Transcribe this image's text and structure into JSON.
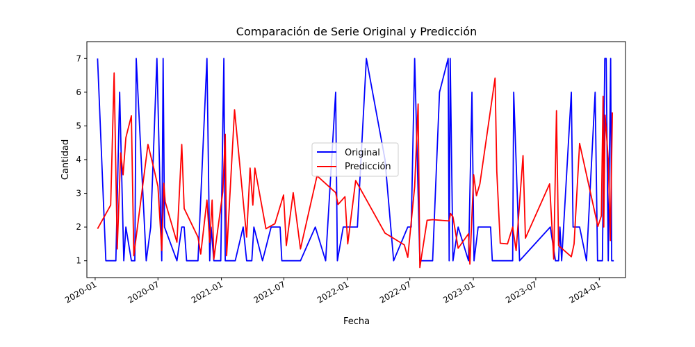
{
  "chart_data": {
    "type": "line",
    "title": "Comparación de Serie Original y Predicción",
    "xlabel": "Fecha",
    "ylabel": "Cantidad",
    "x_axis": "date",
    "xlim": [
      "2019-12-08",
      "2024-03-17"
    ],
    "ylim": [
      0.5,
      7.5
    ],
    "x_ticks": [
      {
        "date": "2020-01-01",
        "label": "2020-01"
      },
      {
        "date": "2020-07-01",
        "label": "2020-07"
      },
      {
        "date": "2021-01-01",
        "label": "2021-01"
      },
      {
        "date": "2021-07-01",
        "label": "2021-07"
      },
      {
        "date": "2022-01-01",
        "label": "2022-01"
      },
      {
        "date": "2022-07-01",
        "label": "2022-07"
      },
      {
        "date": "2023-01-01",
        "label": "2023-01"
      },
      {
        "date": "2023-07-01",
        "label": "2023-07"
      },
      {
        "date": "2024-01-01",
        "label": "2024-01"
      }
    ],
    "y_ticks": [
      1,
      2,
      3,
      4,
      5,
      6,
      7
    ],
    "grid": false,
    "legend": {
      "placement": "center",
      "entries": [
        "Original",
        "Predicción"
      ]
    },
    "series": [
      {
        "name": "Original",
        "color": "#0000ff",
        "points": [
          [
            "2020-01-08",
            7
          ],
          [
            "2020-02-01",
            1
          ],
          [
            "2020-03-01",
            1
          ],
          [
            "2020-03-12",
            6
          ],
          [
            "2020-03-24",
            1
          ],
          [
            "2020-03-30",
            2
          ],
          [
            "2020-04-15",
            1
          ],
          [
            "2020-04-25",
            1
          ],
          [
            "2020-04-29",
            7
          ],
          [
            "2020-05-28",
            1
          ],
          [
            "2020-06-10",
            2
          ],
          [
            "2020-06-28",
            7
          ],
          [
            "2020-07-12",
            1
          ],
          [
            "2020-07-16",
            7
          ],
          [
            "2020-07-20",
            2
          ],
          [
            "2020-08-25",
            1
          ],
          [
            "2020-09-08",
            2
          ],
          [
            "2020-09-15",
            2
          ],
          [
            "2020-09-22",
            1
          ],
          [
            "2020-10-25",
            1
          ],
          [
            "2020-11-20",
            7
          ],
          [
            "2020-11-28",
            1
          ],
          [
            "2020-12-02",
            2
          ],
          [
            "2020-12-10",
            1
          ],
          [
            "2020-12-30",
            1
          ],
          [
            "2021-01-08",
            7
          ],
          [
            "2021-01-12",
            1
          ],
          [
            "2021-02-10",
            1
          ],
          [
            "2021-03-05",
            2
          ],
          [
            "2021-03-15",
            1
          ],
          [
            "2021-03-30",
            1
          ],
          [
            "2021-04-05",
            2
          ],
          [
            "2021-04-30",
            1
          ],
          [
            "2021-05-25",
            2
          ],
          [
            "2021-06-20",
            2
          ],
          [
            "2021-06-25",
            1
          ],
          [
            "2021-07-18",
            1
          ],
          [
            "2021-08-18",
            1
          ],
          [
            "2021-09-30",
            2
          ],
          [
            "2021-10-30",
            1
          ],
          [
            "2021-11-28",
            6
          ],
          [
            "2021-12-03",
            1
          ],
          [
            "2021-12-20",
            2
          ],
          [
            "2022-01-30",
            2
          ],
          [
            "2022-02-25",
            7
          ],
          [
            "2022-04-20",
            4
          ],
          [
            "2022-05-15",
            1
          ],
          [
            "2022-06-25",
            2
          ],
          [
            "2022-07-05",
            2
          ],
          [
            "2022-07-15",
            7
          ],
          [
            "2022-07-30",
            1
          ],
          [
            "2022-08-20",
            1
          ],
          [
            "2022-09-05",
            1
          ],
          [
            "2022-09-25",
            6
          ],
          [
            "2022-10-20",
            7
          ],
          [
            "2022-10-23",
            1
          ],
          [
            "2022-10-26",
            7
          ],
          [
            "2022-11-03",
            1
          ],
          [
            "2022-11-18",
            2
          ],
          [
            "2022-12-18",
            1
          ],
          [
            "2022-12-28",
            6
          ],
          [
            "2023-01-03",
            1
          ],
          [
            "2023-01-15",
            2
          ],
          [
            "2023-02-20",
            2
          ],
          [
            "2023-02-25",
            1
          ],
          [
            "2023-04-25",
            1
          ],
          [
            "2023-04-28",
            6
          ],
          [
            "2023-05-15",
            1
          ],
          [
            "2023-08-12",
            2
          ],
          [
            "2023-08-27",
            1
          ],
          [
            "2023-09-05",
            1
          ],
          [
            "2023-09-09",
            2
          ],
          [
            "2023-09-14",
            1
          ],
          [
            "2023-10-12",
            6
          ],
          [
            "2023-10-17",
            2
          ],
          [
            "2023-11-05",
            2
          ],
          [
            "2023-11-25",
            1
          ],
          [
            "2023-12-20",
            6
          ],
          [
            "2023-12-27",
            1
          ],
          [
            "2024-01-10",
            1
          ],
          [
            "2024-01-17",
            7
          ],
          [
            "2024-01-21",
            7
          ],
          [
            "2024-01-27",
            1
          ],
          [
            "2024-02-03",
            7
          ],
          [
            "2024-02-06",
            1
          ],
          [
            "2024-02-12",
            1
          ]
        ]
      },
      {
        "name": "Predicción",
        "color": "#ff0000",
        "points": [
          [
            "2020-01-08",
            1.95
          ],
          [
            "2020-02-15",
            2.65
          ],
          [
            "2020-02-25",
            6.57
          ],
          [
            "2020-03-05",
            1.35
          ],
          [
            "2020-03-15",
            4.2
          ],
          [
            "2020-03-22",
            3.55
          ],
          [
            "2020-03-30",
            4.65
          ],
          [
            "2020-04-15",
            5.3
          ],
          [
            "2020-04-22",
            1.15
          ],
          [
            "2020-06-02",
            4.45
          ],
          [
            "2020-06-20",
            3.7
          ],
          [
            "2020-07-01",
            3.2
          ],
          [
            "2020-07-12",
            1.3
          ],
          [
            "2020-07-18",
            3.3
          ],
          [
            "2020-07-22",
            2.75
          ],
          [
            "2020-08-25",
            1.55
          ],
          [
            "2020-09-08",
            4.45
          ],
          [
            "2020-09-15",
            2.55
          ],
          [
            "2020-10-25",
            1.7
          ],
          [
            "2020-11-02",
            1.2
          ],
          [
            "2020-11-20",
            2.8
          ],
          [
            "2020-11-28",
            1.55
          ],
          [
            "2020-12-05",
            2.8
          ],
          [
            "2020-12-10",
            1.05
          ],
          [
            "2021-01-05",
            3.05
          ],
          [
            "2021-01-12",
            4.75
          ],
          [
            "2021-01-16",
            1.15
          ],
          [
            "2021-02-08",
            5.48
          ],
          [
            "2021-03-15",
            1.7
          ],
          [
            "2021-03-25",
            3.75
          ],
          [
            "2021-04-02",
            2.65
          ],
          [
            "2021-04-08",
            3.75
          ],
          [
            "2021-05-10",
            1.95
          ],
          [
            "2021-06-05",
            2.1
          ],
          [
            "2021-06-30",
            2.95
          ],
          [
            "2021-07-08",
            1.45
          ],
          [
            "2021-07-28",
            3.02
          ],
          [
            "2021-08-18",
            1.35
          ],
          [
            "2021-10-05",
            3.52
          ],
          [
            "2021-11-28",
            3.02
          ],
          [
            "2021-12-05",
            2.67
          ],
          [
            "2021-12-25",
            2.9
          ],
          [
            "2022-01-02",
            1.5
          ],
          [
            "2022-01-25",
            3.38
          ],
          [
            "2022-04-20",
            1.82
          ],
          [
            "2022-06-15",
            1.47
          ],
          [
            "2022-06-25",
            1.1
          ],
          [
            "2022-07-15",
            3.2
          ],
          [
            "2022-07-25",
            5.65
          ],
          [
            "2022-07-30",
            0.8
          ],
          [
            "2022-08-20",
            2.2
          ],
          [
            "2022-09-05",
            2.22
          ],
          [
            "2022-10-23",
            2.18
          ],
          [
            "2022-10-27",
            2.4
          ],
          [
            "2022-11-03",
            2.3
          ],
          [
            "2022-11-18",
            1.37
          ],
          [
            "2022-12-18",
            1.8
          ],
          [
            "2022-12-22",
            0.9
          ],
          [
            "2023-01-02",
            3.55
          ],
          [
            "2023-01-10",
            2.93
          ],
          [
            "2023-01-20",
            3.28
          ],
          [
            "2023-03-05",
            6.42
          ],
          [
            "2023-03-10",
            3.65
          ],
          [
            "2023-03-20",
            1.52
          ],
          [
            "2023-04-10",
            1.5
          ],
          [
            "2023-04-25",
            2.0
          ],
          [
            "2023-05-05",
            1.3
          ],
          [
            "2023-05-25",
            4.12
          ],
          [
            "2023-06-01",
            1.67
          ],
          [
            "2023-08-10",
            3.28
          ],
          [
            "2023-08-22",
            1.05
          ],
          [
            "2023-08-30",
            5.45
          ],
          [
            "2023-09-05",
            1.45
          ],
          [
            "2023-10-12",
            1.12
          ],
          [
            "2023-10-20",
            1.5
          ],
          [
            "2023-11-05",
            4.48
          ],
          [
            "2023-12-28",
            2.02
          ],
          [
            "2024-01-07",
            2.33
          ],
          [
            "2024-01-12",
            5.88
          ],
          [
            "2024-01-14",
            2.0
          ],
          [
            "2024-01-18",
            5.32
          ],
          [
            "2024-01-27",
            4.0
          ],
          [
            "2024-02-02",
            1.6
          ],
          [
            "2024-02-08",
            5.4
          ]
        ]
      }
    ]
  }
}
